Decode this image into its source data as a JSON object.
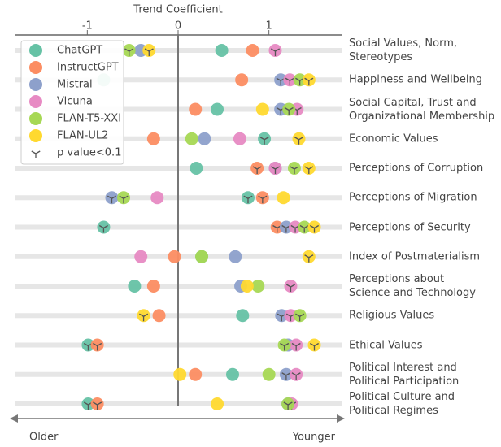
{
  "chart_data": {
    "type": "dot",
    "xlabel": "Trend Coefficient",
    "left_label": "Older",
    "right_label": "Younger",
    "xlim": [
      -1.8,
      1.8
    ],
    "xticks": [
      -1,
      0,
      1
    ],
    "categories": [
      "Social Values, Norm,\nStereotypes",
      "Happiness and Wellbeing",
      "Social Capital, Trust and\nOrganizational Membership",
      "Economic Values",
      "Perceptions of Corruption",
      "Perceptions of Migration",
      "Perceptions of Security",
      "Index of Postmaterialism",
      "Perceptions about\nScience and Technology",
      "Religious Values",
      "Ethical Values",
      "Political Interest and\nPolitical Participation",
      "Political Culture and\nPolitical Regimes"
    ],
    "significance_label": "p value<0.1",
    "series": [
      {
        "name": "ChatGPT",
        "color": "#66c2a5",
        "values": [
          0.48,
          -0.82,
          0.43,
          0.95,
          0.2,
          0.77,
          -0.82,
          0.26,
          -0.48,
          0.71,
          -0.99,
          0.6,
          -0.99
        ],
        "significant": [
          false,
          false,
          false,
          true,
          false,
          true,
          true,
          false,
          false,
          false,
          true,
          false,
          true
        ]
      },
      {
        "name": "InstructGPT",
        "color": "#fc8d62",
        "values": [
          0.82,
          0.7,
          0.19,
          -0.27,
          0.87,
          0.93,
          1.09,
          -0.04,
          -0.27,
          -0.21,
          -0.89,
          0.19,
          -0.89
        ],
        "significant": [
          false,
          false,
          false,
          false,
          true,
          true,
          true,
          false,
          false,
          false,
          true,
          false,
          true
        ]
      },
      {
        "name": "Mistral",
        "color": "#8da0cb",
        "values": [
          -0.41,
          1.13,
          1.13,
          0.29,
          1.07,
          -0.73,
          1.19,
          0.63,
          0.69,
          1.14,
          1.21,
          1.19,
          1.21
        ],
        "significant": [
          false,
          true,
          true,
          false,
          true,
          true,
          true,
          false,
          false,
          true,
          false,
          true,
          true
        ]
      },
      {
        "name": "Vicuna",
        "color": "#e78ac3",
        "values": [
          1.07,
          1.23,
          1.31,
          0.68,
          1.07,
          -0.23,
          1.29,
          -0.41,
          1.24,
          1.24,
          1.3,
          1.3,
          1.25
        ],
        "significant": [
          true,
          true,
          true,
          false,
          true,
          false,
          true,
          false,
          true,
          true,
          true,
          true,
          true
        ]
      },
      {
        "name": "FLAN-T5-XXI",
        "color": "#a6d854",
        "values": [
          -0.54,
          1.34,
          1.22,
          0.15,
          1.28,
          -0.6,
          1.39,
          0.26,
          0.88,
          1.34,
          1.17,
          1.0,
          1.21
        ],
        "significant": [
          true,
          true,
          true,
          false,
          true,
          true,
          true,
          false,
          false,
          true,
          true,
          false,
          true
        ]
      },
      {
        "name": "FLAN-UL2",
        "color": "#ffd92f",
        "values": [
          -0.32,
          1.44,
          0.93,
          1.33,
          1.44,
          1.16,
          1.5,
          1.44,
          0.76,
          -0.38,
          1.5,
          0.02,
          0.43
        ],
        "significant": [
          true,
          true,
          false,
          true,
          true,
          false,
          true,
          true,
          false,
          true,
          true,
          false,
          false
        ]
      }
    ]
  }
}
